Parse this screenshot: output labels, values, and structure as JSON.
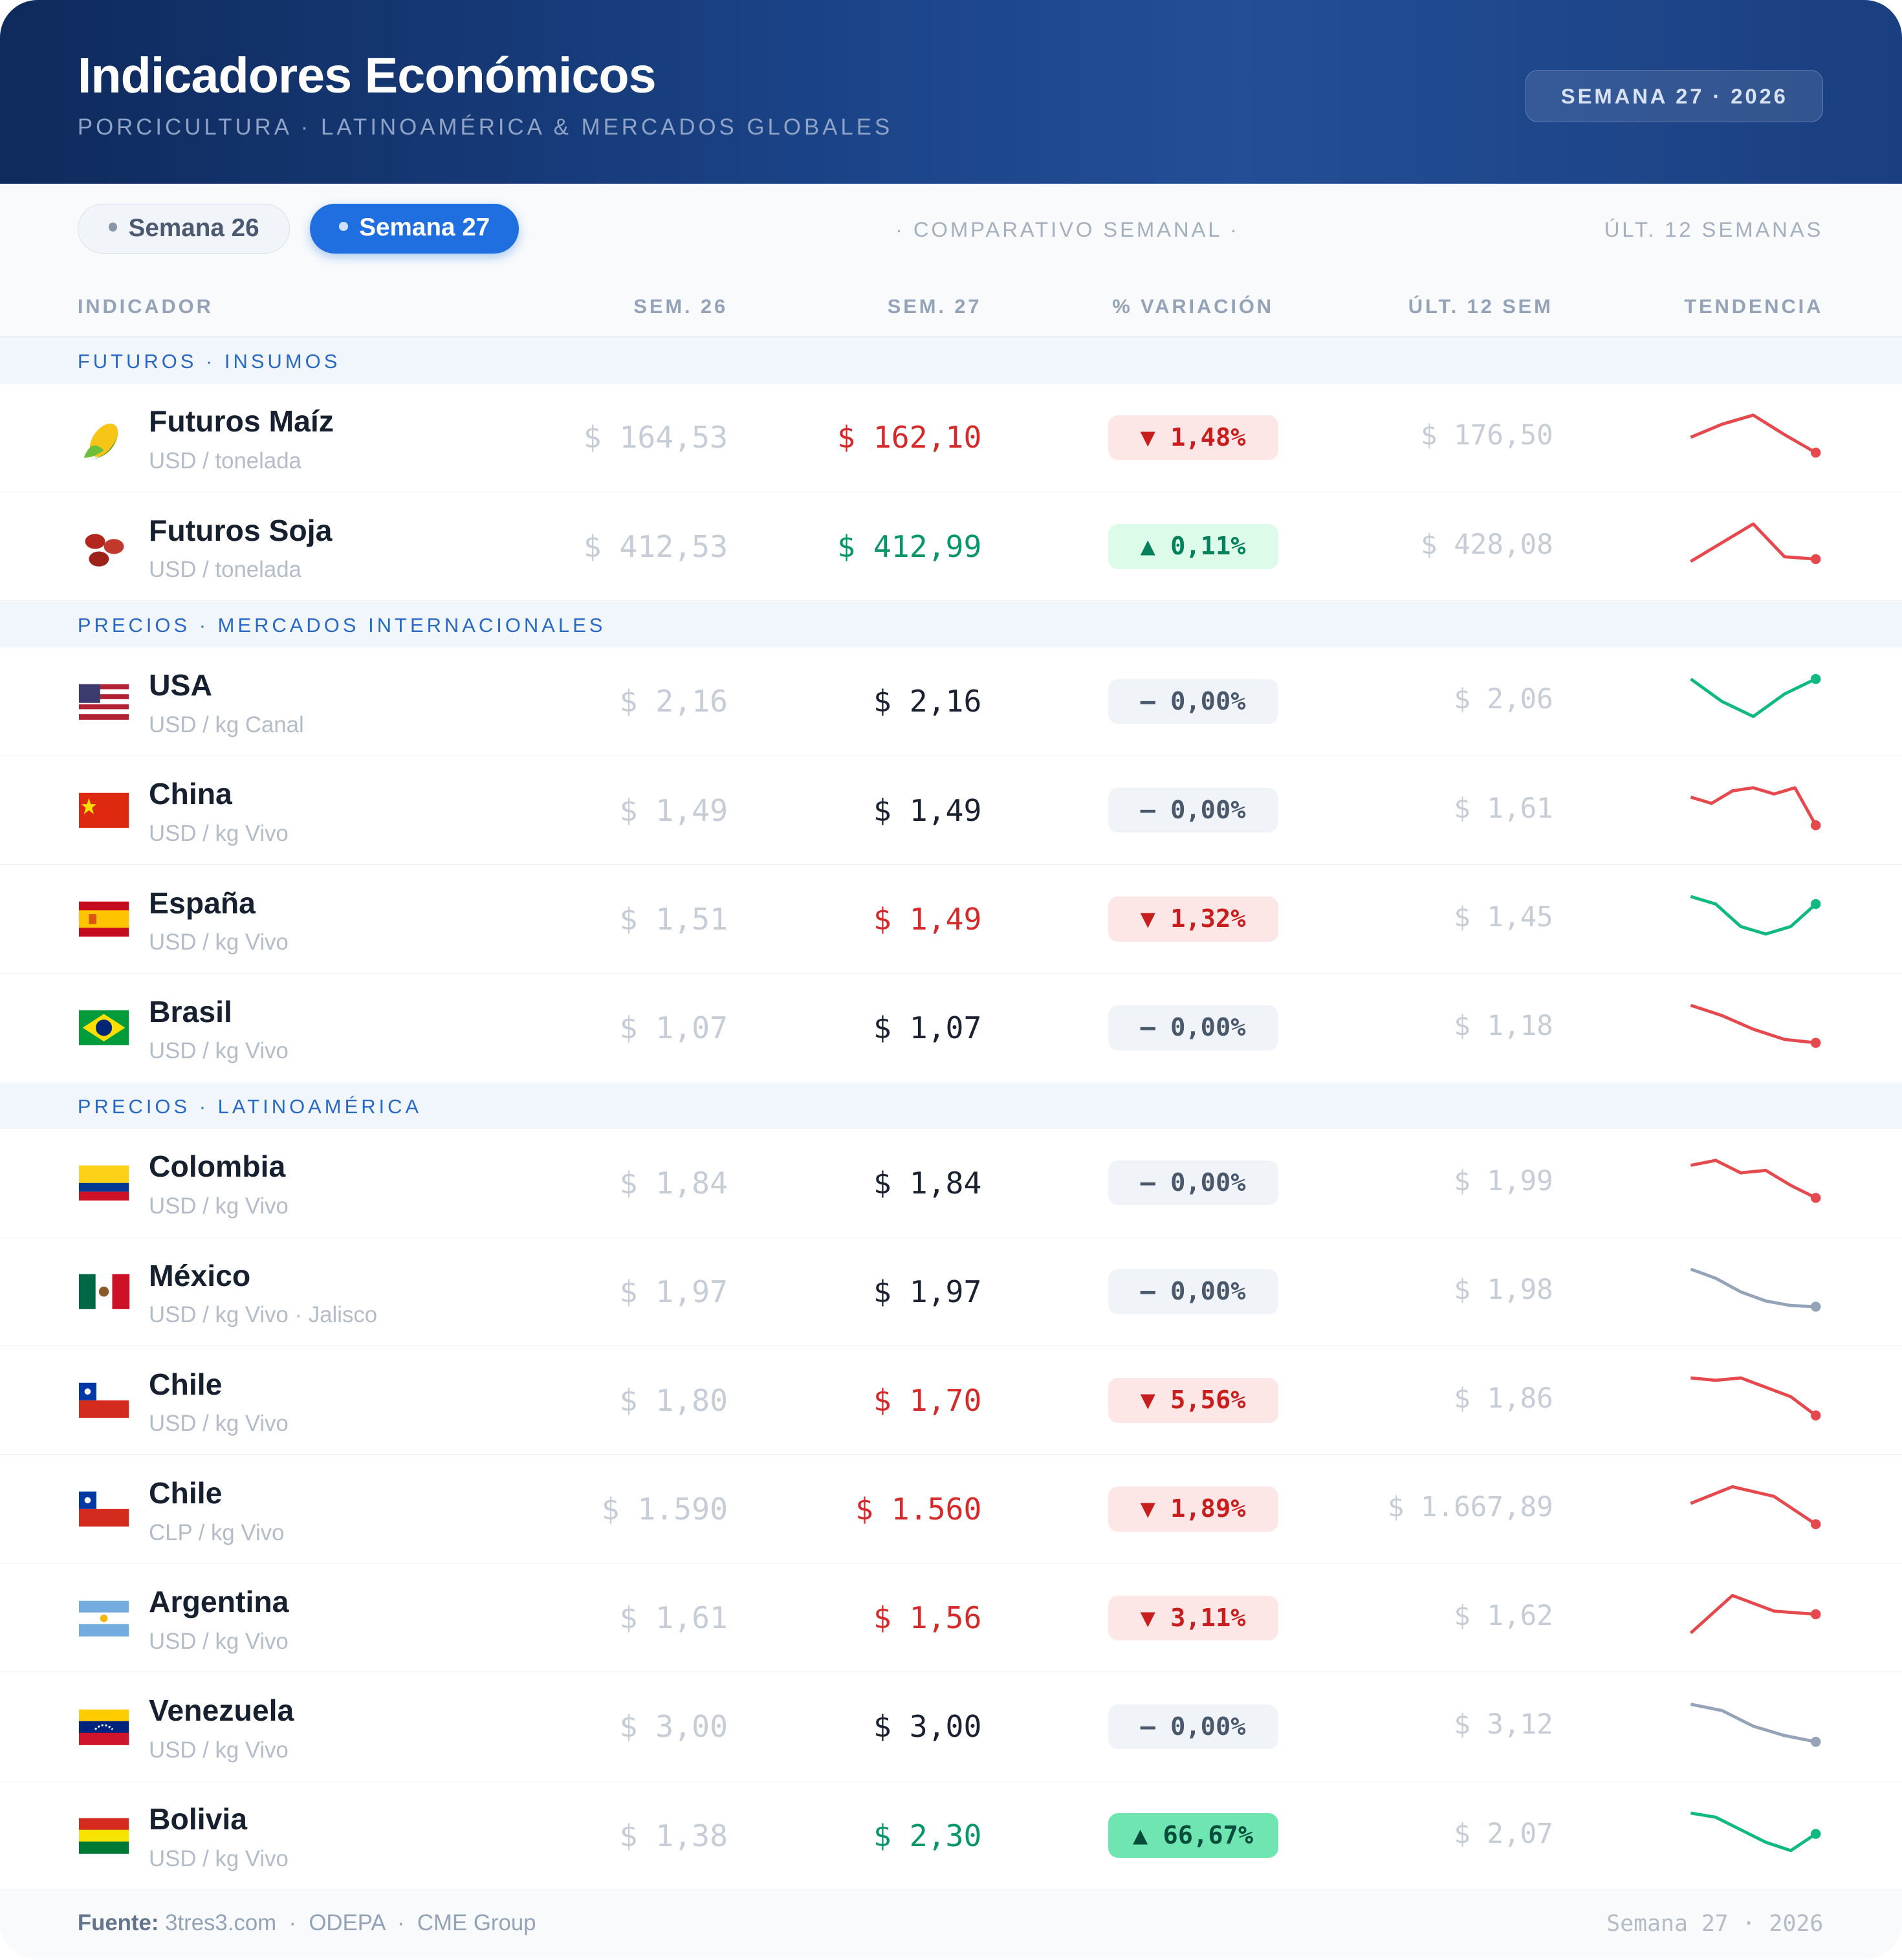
{
  "header": {
    "title": "Indicadores Económicos",
    "subtitle": "PORCICULTURA · LATINOAMÉRICA & MERCADOS GLOBALES",
    "badge": "SEMANA 27 · 2026"
  },
  "toolbar": {
    "tabs": [
      "Semana 26",
      "Semana 27"
    ],
    "active_tab": 1,
    "center": "· COMPARATIVO SEMANAL ·",
    "right": "ÚLT. 12 SEMANAS"
  },
  "columns": [
    "INDICADOR",
    "SEM. 26",
    "SEM. 27",
    "% VARIACIÓN",
    "ÚLT. 12 SEM",
    "TENDENCIA"
  ],
  "sections": [
    {
      "title": "FUTUROS · INSUMOS",
      "rows": [
        {
          "name": "Futuros Maíz",
          "unit": "USD / tonelada",
          "sem26": "$ 164,53",
          "sem27": "$ 162,10",
          "variation": "▼ 1,48%",
          "ult12": "$ 176,50",
          "status": "down",
          "trend": {
            "color": "#e5484d",
            "values": [
              168,
              173,
              176.5,
              169,
              162.1
            ]
          }
        },
        {
          "name": "Futuros Soja",
          "unit": "USD / tonelada",
          "sem26": "$ 412,53",
          "sem27": "$ 412,99",
          "variation": "▲ 0,11%",
          "ult12": "$ 428,08",
          "status": "up",
          "trend": {
            "color": "#e5484d",
            "values": [
              412,
              420,
              428,
              414,
              412.99
            ]
          }
        }
      ]
    },
    {
      "title": "PRECIOS · MERCADOS INTERNACIONALES",
      "rows": [
        {
          "name": "USA",
          "unit": "USD / kg Canal",
          "sem26": "$ 2,16",
          "sem27": "$ 2,16",
          "variation": "– 0,00%",
          "ult12": "$ 2,06",
          "status": "flat",
          "trend": {
            "color": "#10b981",
            "values": [
              2.16,
              2.1,
              2.06,
              2.12,
              2.16
            ]
          }
        },
        {
          "name": "China",
          "unit": "USD / kg Vivo",
          "sem26": "$ 1,49",
          "sem27": "$ 1,49",
          "variation": "– 0,00%",
          "ult12": "$ 1,61",
          "status": "flat",
          "trend": {
            "color": "#e5484d",
            "values": [
              1.58,
              1.56,
              1.6,
              1.61,
              1.59,
              1.61,
              1.49
            ]
          }
        },
        {
          "name": "España",
          "unit": "USD / kg Vivo",
          "sem26": "$ 1,51",
          "sem27": "$ 1,49",
          "variation": "▼ 1,32%",
          "ult12": "$ 1,45",
          "status": "down",
          "trend": {
            "color": "#10b981",
            "values": [
              1.5,
              1.49,
              1.46,
              1.45,
              1.46,
              1.49
            ]
          }
        },
        {
          "name": "Brasil",
          "unit": "USD / kg Vivo",
          "sem26": "$ 1,07",
          "sem27": "$ 1,07",
          "variation": "– 0,00%",
          "ult12": "$ 1,18",
          "status": "flat",
          "trend": {
            "color": "#e5484d",
            "values": [
              1.18,
              1.15,
              1.11,
              1.08,
              1.07
            ]
          }
        }
      ]
    },
    {
      "title": "PRECIOS · LATINOAMÉRICA",
      "rows": [
        {
          "name": "Colombia",
          "unit": "USD / kg Vivo",
          "sem26": "$ 1,84",
          "sem27": "$ 1,84",
          "variation": "– 0,00%",
          "ult12": "$ 1,99",
          "status": "flat",
          "trend": {
            "color": "#e5484d",
            "values": [
              1.97,
              1.99,
              1.94,
              1.95,
              1.89,
              1.84
            ]
          }
        },
        {
          "name": "México",
          "unit": "USD / kg Vivo · Jalisco",
          "sem26": "$ 1,97",
          "sem27": "$ 1,97",
          "variation": "– 0,00%",
          "ult12": "$ 1,98",
          "status": "flat",
          "trend": {
            "color": "#94a3b8",
            "values": [
              2.3,
              2.22,
              2.1,
              2.02,
              1.98,
              1.97
            ]
          }
        },
        {
          "name": "Chile",
          "unit": "USD / kg Vivo",
          "sem26": "$ 1,80",
          "sem27": "$ 1,70",
          "variation": "▼ 5,56%",
          "ult12": "$ 1,86",
          "status": "down",
          "trend": {
            "color": "#e5484d",
            "values": [
              1.86,
              1.85,
              1.86,
              1.82,
              1.78,
              1.7
            ]
          }
        },
        {
          "name": "Chile",
          "unit": "CLP / kg Vivo",
          "sem26": "$ 1.590",
          "sem27": "$ 1.560",
          "variation": "▼ 1,89%",
          "ult12": "$ 1.667,89",
          "status": "down",
          "trend": {
            "color": "#e5484d",
            "values": [
              1620,
              1667.89,
              1640,
              1560
            ]
          }
        },
        {
          "name": "Argentina",
          "unit": "USD / kg Vivo",
          "sem26": "$ 1,61",
          "sem27": "$ 1,56",
          "variation": "▼ 3,11%",
          "ult12": "$ 1,62",
          "status": "down",
          "trend": {
            "color": "#e5484d",
            "values": [
              1.5,
              1.62,
              1.57,
              1.56
            ]
          }
        },
        {
          "name": "Venezuela",
          "unit": "USD / kg Vivo",
          "sem26": "$ 3,00",
          "sem27": "$ 3,00",
          "variation": "– 0,00%",
          "ult12": "$ 3,12",
          "status": "flat",
          "trend": {
            "color": "#94a3b8",
            "values": [
              3.12,
              3.1,
              3.05,
              3.02,
              3.0
            ]
          }
        },
        {
          "name": "Bolivia",
          "unit": "USD / kg Vivo",
          "sem26": "$ 1,38",
          "sem27": "$ 2,30",
          "variation": "▲ 66,67%",
          "ult12": "$ 2,07",
          "status": "up-strong",
          "trend": {
            "color": "#10b981",
            "values": [
              2.55,
              2.5,
              2.35,
              2.2,
              2.1,
              2.3
            ]
          }
        }
      ]
    }
  ],
  "footer": {
    "source_label": "Fuente:",
    "sources": "3tres3.com  ·  ODEPA  ·  CME Group",
    "right": "Semana 27 · 2026"
  }
}
